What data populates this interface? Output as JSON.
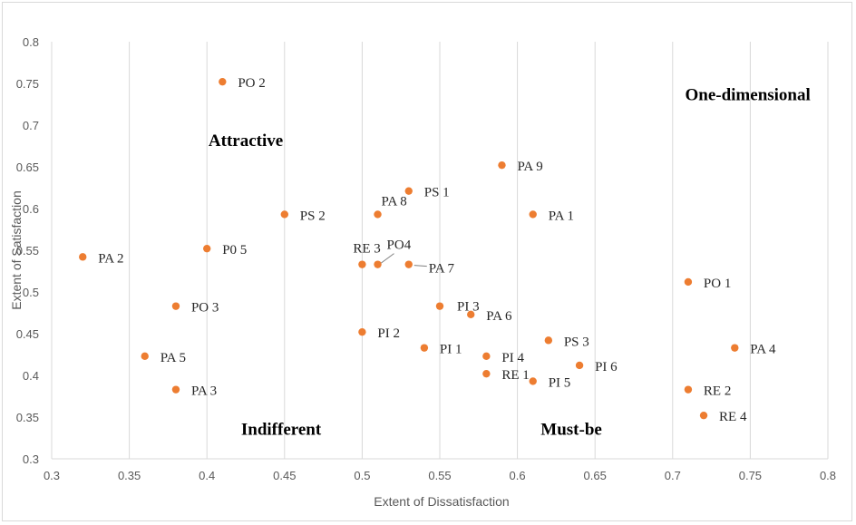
{
  "chart_data": {
    "type": "scatter",
    "title": "",
    "xlabel": "Extent of Dissatisfaction",
    "ylabel": "Extent of Satisfaction",
    "xlim": [
      0.3,
      0.8
    ],
    "ylim": [
      0.3,
      0.8
    ],
    "xticks": [
      "0.3",
      "0.35",
      "0.4",
      "0.45",
      "0.5",
      "0.55",
      "0.6",
      "0.65",
      "0.7",
      "0.75",
      "0.8"
    ],
    "yticks": [
      "0.3",
      "0.35",
      "0.4",
      "0.45",
      "0.5",
      "0.55",
      "0.6",
      "0.65",
      "0.7",
      "0.75",
      "0.8"
    ],
    "grid": "vertical",
    "marker_color": "#ED7D31",
    "grid_color": "#d9d9d9",
    "points": [
      {
        "label": "PO 2",
        "x": 0.41,
        "y": 0.752
      },
      {
        "label": "PA 9",
        "x": 0.59,
        "y": 0.652
      },
      {
        "label": "PS 1",
        "x": 0.53,
        "y": 0.621
      },
      {
        "label": "PA 8",
        "x": 0.51,
        "y": 0.593
      },
      {
        "label": "PS 2",
        "x": 0.45,
        "y": 0.593
      },
      {
        "label": "PA 1",
        "x": 0.61,
        "y": 0.593
      },
      {
        "label": "PA 2",
        "x": 0.32,
        "y": 0.542
      },
      {
        "label": "P0 5",
        "x": 0.4,
        "y": 0.552
      },
      {
        "label": "RE 3",
        "x": 0.5,
        "y": 0.533
      },
      {
        "label": "PO4",
        "x": 0.51,
        "y": 0.533
      },
      {
        "label": "PA 7",
        "x": 0.53,
        "y": 0.533
      },
      {
        "label": "PO 1",
        "x": 0.71,
        "y": 0.512
      },
      {
        "label": "PO 3",
        "x": 0.38,
        "y": 0.483
      },
      {
        "label": "PI 3",
        "x": 0.55,
        "y": 0.483
      },
      {
        "label": "PA 6",
        "x": 0.57,
        "y": 0.473
      },
      {
        "label": "PI 2",
        "x": 0.5,
        "y": 0.452
      },
      {
        "label": "PS 3",
        "x": 0.62,
        "y": 0.442
      },
      {
        "label": "PI 1",
        "x": 0.54,
        "y": 0.433
      },
      {
        "label": "PA 4",
        "x": 0.74,
        "y": 0.433
      },
      {
        "label": "PA 5",
        "x": 0.36,
        "y": 0.423
      },
      {
        "label": "PI 4",
        "x": 0.58,
        "y": 0.423
      },
      {
        "label": "PI 6",
        "x": 0.64,
        "y": 0.412
      },
      {
        "label": "RE 1",
        "x": 0.58,
        "y": 0.402
      },
      {
        "label": "PI 5",
        "x": 0.61,
        "y": 0.393
      },
      {
        "label": "PA 3",
        "x": 0.38,
        "y": 0.383
      },
      {
        "label": "RE 2",
        "x": 0.71,
        "y": 0.383
      },
      {
        "label": "RE 4",
        "x": 0.72,
        "y": 0.352
      }
    ],
    "annotations": [
      {
        "text": "One-dimensional",
        "x": 0.708,
        "y": 0.73
      },
      {
        "text": "Attractive",
        "x": 0.401,
        "y": 0.675
      },
      {
        "text": "Indifferent",
        "x": 0.422,
        "y": 0.329
      },
      {
        "text": "Must-be",
        "x": 0.615,
        "y": 0.329
      }
    ]
  }
}
